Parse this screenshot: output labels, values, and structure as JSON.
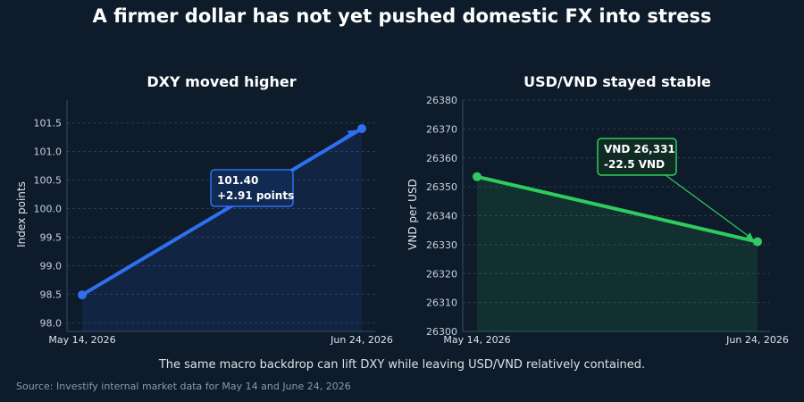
{
  "title": "A firmer dollar has not yet pushed domestic FX into stress",
  "footnote": "The same macro backdrop can lift DXY while leaving USD/VND relatively contained.",
  "source": "Source: Investify internal market data for May 14 and June 24, 2026",
  "chart_data": [
    {
      "type": "line",
      "title": "DXY moved higher",
      "xlabel": "",
      "ylabel": "Index points",
      "x": [
        "May 14, 2026",
        "Jun 24, 2026"
      ],
      "series": [
        {
          "values": [
            98.49,
            101.4
          ]
        }
      ],
      "ylim": [
        97.85,
        101.9
      ],
      "yticks": [
        98.0,
        98.5,
        99.0,
        99.5,
        100.0,
        100.5,
        101.0,
        101.5
      ],
      "grid": true,
      "color": "#2f6ff0",
      "annotation": {
        "lines": [
          "101.40",
          "+2.91 points"
        ]
      }
    },
    {
      "type": "line",
      "title": "USD/VND stayed stable",
      "xlabel": "",
      "ylabel": "VND per USD",
      "x": [
        "May 14, 2026",
        "Jun 24, 2026"
      ],
      "series": [
        {
          "values": [
            26353.5,
            26331
          ]
        }
      ],
      "ylim": [
        26300,
        26380
      ],
      "yticks": [
        26300,
        26310,
        26320,
        26330,
        26340,
        26350,
        26360,
        26370,
        26380
      ],
      "grid": true,
      "color": "#2ecc5e",
      "annotation": {
        "lines": [
          "VND 26,331",
          "-22.5 VND"
        ]
      }
    }
  ]
}
